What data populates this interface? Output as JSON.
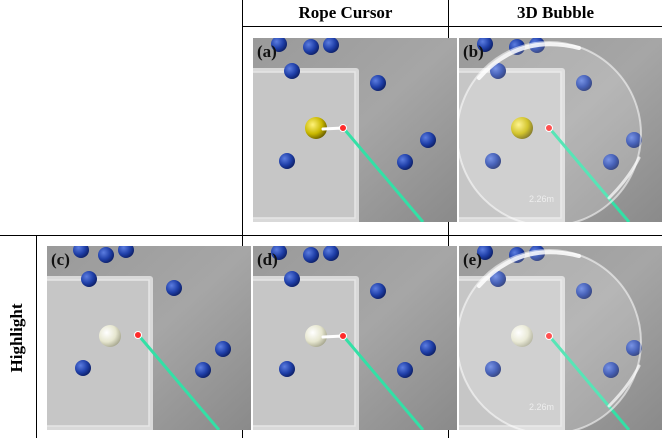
{
  "columns": [
    "Rope Cursor",
    "3D Bubble"
  ],
  "row_label": "Highlight",
  "panels": [
    {
      "label": "(a)",
      "variant": "rope-cursor",
      "target": "yellow",
      "rope": true,
      "bubble": false,
      "distance": ""
    },
    {
      "label": "(b)",
      "variant": "3d-bubble",
      "target": "yellow",
      "rope": false,
      "bubble": true,
      "distance": "2.26m"
    },
    {
      "label": "(c)",
      "variant": "highlight",
      "target": "white",
      "rope": false,
      "bubble": false,
      "distance": ""
    },
    {
      "label": "(d)",
      "variant": "rope-highlight",
      "target": "white",
      "rope": true,
      "bubble": false,
      "distance": ""
    },
    {
      "label": "(e)",
      "variant": "bubble-highlight",
      "target": "white",
      "rope": false,
      "bubble": true,
      "distance": "2.26m"
    }
  ],
  "colors": {
    "ray": "#33e0a6",
    "sphere": "#1f3fa8",
    "target_yellow": "#c9b800",
    "target_white": "#e6e6cf",
    "cursor": "#ff2a2a"
  }
}
